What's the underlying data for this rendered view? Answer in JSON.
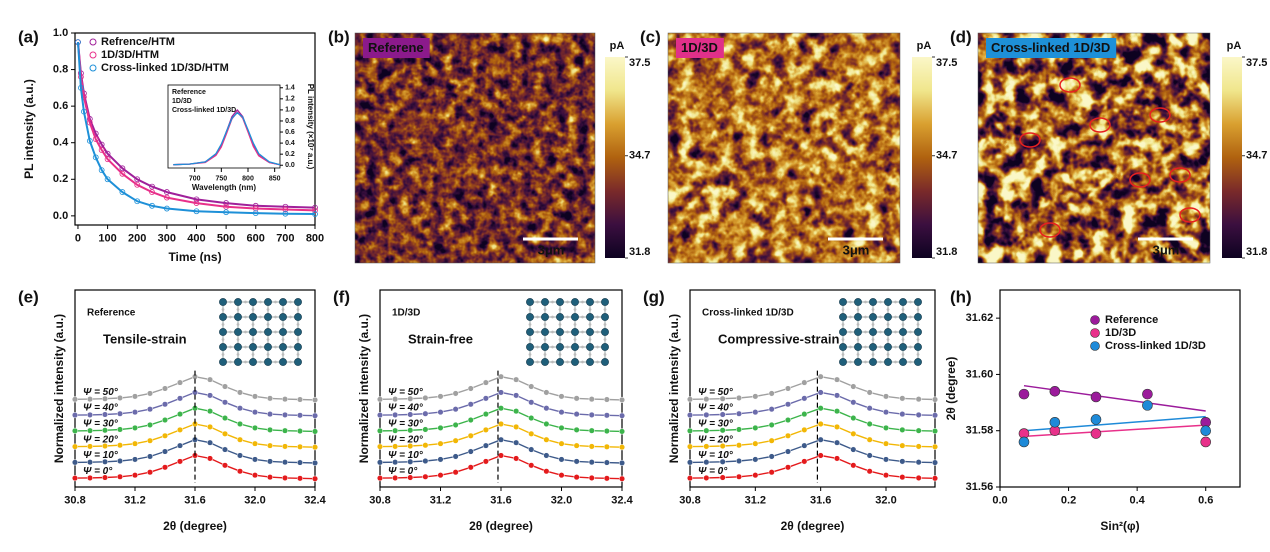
{
  "chart_data": [
    {
      "type": "line",
      "panel_label": "(a)",
      "x_label": "Time (ns)",
      "y_label": "PL intensity (a.u.)",
      "x": [
        0,
        10,
        20,
        40,
        60,
        80,
        100,
        150,
        200,
        250,
        300,
        400,
        500,
        600,
        700,
        800
      ],
      "xlim": [
        -10,
        800
      ],
      "xticks": [
        0,
        100,
        200,
        300,
        400,
        500,
        600,
        700,
        800
      ],
      "ylim": [
        -0.05,
        1.0
      ],
      "yticks": [
        {
          "value": 0,
          "label": "0.0"
        },
        0.2,
        0.4,
        0.6,
        0.8,
        {
          "value": 1,
          "label": "1.0"
        }
      ],
      "legend": "upper left",
      "series": [
        {
          "name": "Refrence/HTM",
          "color": "#a0209a",
          "values": [
            0.95,
            0.78,
            0.67,
            0.53,
            0.45,
            0.39,
            0.34,
            0.26,
            0.2,
            0.16,
            0.13,
            0.09,
            0.07,
            0.055,
            0.05,
            0.045
          ]
        },
        {
          "name": "1D/3D/HTM",
          "color": "#e8308a",
          "values": [
            0.95,
            0.76,
            0.65,
            0.51,
            0.42,
            0.36,
            0.31,
            0.23,
            0.17,
            0.13,
            0.1,
            0.07,
            0.05,
            0.04,
            0.035,
            0.03
          ]
        },
        {
          "name": "Cross-linked 1D/3D/HTM",
          "color": "#1e90d8",
          "values": [
            0.95,
            0.7,
            0.57,
            0.41,
            0.32,
            0.25,
            0.2,
            0.13,
            0.08,
            0.055,
            0.04,
            0.025,
            0.02,
            0.015,
            0.012,
            0.01
          ]
        }
      ]
    },
    {
      "type": "line",
      "x_label": "Wavelength (nm)",
      "y_label": "PL intensity (×10⁷ a.u.)",
      "yaxis": "right",
      "x": [
        660,
        690,
        720,
        740,
        750,
        760,
        770,
        780,
        790,
        800,
        810,
        820,
        840,
        860
      ],
      "xlim": [
        650,
        860
      ],
      "xticks": [
        700,
        750,
        800,
        850
      ],
      "ylim": [
        -0.05,
        1.45
      ],
      "yticks": [
        {
          "value": 0,
          "label": "0.0"
        },
        0.2,
        0.4,
        0.6,
        0.8,
        {
          "value": 1,
          "label": "1.0"
        },
        1.2,
        1.4
      ],
      "legend": "upper left",
      "series": [
        {
          "name": "Reference",
          "color": "#a0209a",
          "values": [
            0.01,
            0.02,
            0.06,
            0.2,
            0.36,
            0.62,
            0.88,
            1.0,
            0.88,
            0.62,
            0.36,
            0.18,
            0.05,
            0.01
          ]
        },
        {
          "name": "1D/3D",
          "color": "#e8308a",
          "values": [
            0.01,
            0.02,
            0.05,
            0.18,
            0.33,
            0.58,
            0.84,
            0.96,
            0.85,
            0.6,
            0.34,
            0.17,
            0.05,
            0.01
          ]
        },
        {
          "name": "Cross-linked 1D/3D",
          "color": "#1e90d8",
          "values": [
            0.01,
            0.02,
            0.06,
            0.21,
            0.38,
            0.62,
            0.85,
            0.95,
            0.87,
            0.64,
            0.4,
            0.21,
            0.06,
            0.01
          ]
        }
      ]
    },
    {
      "type": "image",
      "panel_label": "(b)",
      "label": "Referene",
      "label_color": "#8b1a8b",
      "scale_bar": "3μm",
      "colorbar_unit": "pA",
      "clim": [
        31.8,
        37.5
      ],
      "cticks": [
        37.5,
        34.7,
        31.8
      ],
      "colormap": [
        "#0d0221",
        "#3b0f3f",
        "#7a2a2a",
        "#b0620f",
        "#d9a030",
        "#f0e68c",
        "#fbf7c8"
      ]
    },
    {
      "type": "image",
      "panel_label": "(c)",
      "label": "1D/3D",
      "label_color": "#e0308a",
      "scale_bar": "3μm",
      "colorbar_unit": "pA",
      "clim": [
        31.8,
        37.5
      ],
      "cticks": [
        37.5,
        34.7,
        31.8
      ],
      "colormap": [
        "#0d0221",
        "#3b0f3f",
        "#7a2a2a",
        "#b0620f",
        "#d9a030",
        "#f0e68c",
        "#fbf7c8"
      ]
    },
    {
      "type": "image",
      "panel_label": "(d)",
      "label": "Cross-linked 1D/3D",
      "label_color": "#1e90d8",
      "scale_bar": "3μm",
      "colorbar_unit": "pA",
      "clim": [
        31.8,
        37.5
      ],
      "cticks": [
        37.5,
        34.7,
        31.8
      ],
      "colormap": [
        "#0d0221",
        "#3b0f3f",
        "#7a2a2a",
        "#b0620f",
        "#d9a030",
        "#f0e68c",
        "#fbf7c8"
      ]
    },
    {
      "type": "line",
      "panel_label": "(e)",
      "x_label": "2θ (degree)",
      "y_label": "Normalized intensity (a.u.)",
      "sample": "Reference",
      "sample_color": "#a0209a",
      "strain": "Tensile-strain",
      "strain_color": "#8b1a8b",
      "peak_line": 31.6,
      "x": [
        30.8,
        30.9,
        31.0,
        31.1,
        31.2,
        31.3,
        31.4,
        31.5,
        31.6,
        31.7,
        31.8,
        31.9,
        32.0,
        32.1,
        32.2,
        32.3,
        32.4
      ],
      "xlim": [
        30.8,
        32.4
      ],
      "xticks": [
        30.8,
        31.2,
        31.6,
        {
          "value": 32,
          "label": "32.0"
        },
        32.4
      ],
      "ylim": [
        0,
        10
      ],
      "series": [
        {
          "name": "Ψ = 0°",
          "color": "#e41a1c",
          "values": [
            0.45,
            0.46,
            0.48,
            0.52,
            0.6,
            0.75,
            1.0,
            1.3,
            1.6,
            1.45,
            1.1,
            0.8,
            0.6,
            0.5,
            0.46,
            0.44,
            0.42
          ]
        },
        {
          "name": "Ψ = 10°",
          "color": "#3d5a8a",
          "values": [
            1.25,
            1.26,
            1.28,
            1.32,
            1.4,
            1.55,
            1.8,
            2.1,
            2.4,
            2.25,
            1.9,
            1.6,
            1.4,
            1.3,
            1.26,
            1.24,
            1.22
          ]
        },
        {
          "name": "Ψ = 20°",
          "color": "#f2b705",
          "values": [
            2.05,
            2.06,
            2.08,
            2.12,
            2.2,
            2.35,
            2.6,
            2.9,
            3.2,
            3.05,
            2.7,
            2.4,
            2.2,
            2.1,
            2.06,
            2.04,
            2.02
          ]
        },
        {
          "name": "Ψ = 30°",
          "color": "#3cb44b",
          "values": [
            2.85,
            2.86,
            2.88,
            2.92,
            3.0,
            3.15,
            3.4,
            3.7,
            4.0,
            3.85,
            3.5,
            3.2,
            3.0,
            2.9,
            2.86,
            2.84,
            2.82
          ]
        },
        {
          "name": "Ψ = 40°",
          "color": "#6b6bab",
          "values": [
            3.65,
            3.66,
            3.68,
            3.72,
            3.8,
            3.95,
            4.2,
            4.5,
            4.8,
            4.65,
            4.3,
            4.0,
            3.8,
            3.7,
            3.66,
            3.64,
            3.62
          ]
        },
        {
          "name": "Ψ = 50°",
          "color": "#a0a0a0",
          "values": [
            4.45,
            4.46,
            4.48,
            4.52,
            4.6,
            4.75,
            5.0,
            5.3,
            5.6,
            5.45,
            5.1,
            4.8,
            4.6,
            4.5,
            4.46,
            4.44,
            4.42
          ]
        }
      ]
    },
    {
      "type": "line",
      "panel_label": "(f)",
      "x_label": "2θ (degree)",
      "y_label": "Normalized intensity (a.u.)",
      "sample": "1D/3D",
      "sample_color": "#e0308a",
      "strain": "Strain-free",
      "strain_color": "#e8308a",
      "peak_line": 31.58,
      "x": [
        30.8,
        30.9,
        31.0,
        31.1,
        31.2,
        31.3,
        31.4,
        31.5,
        31.6,
        31.7,
        31.8,
        31.9,
        32.0,
        32.1,
        32.2,
        32.3,
        32.4
      ],
      "xlim": [
        30.8,
        32.4
      ],
      "xticks": [
        30.8,
        31.2,
        31.6,
        {
          "value": 32,
          "label": "32.0"
        },
        32.4
      ],
      "ylim": [
        0,
        10
      ],
      "series": [
        {
          "name": "Ψ = 0°",
          "color": "#e41a1c",
          "values": [
            0.45,
            0.46,
            0.48,
            0.52,
            0.6,
            0.75,
            1.0,
            1.3,
            1.6,
            1.45,
            1.1,
            0.8,
            0.6,
            0.5,
            0.46,
            0.44,
            0.42
          ]
        },
        {
          "name": "Ψ = 10°",
          "color": "#3d5a8a",
          "values": [
            1.25,
            1.26,
            1.28,
            1.32,
            1.4,
            1.55,
            1.8,
            2.1,
            2.4,
            2.25,
            1.9,
            1.6,
            1.4,
            1.3,
            1.26,
            1.24,
            1.22
          ]
        },
        {
          "name": "Ψ = 20°",
          "color": "#f2b705",
          "values": [
            2.05,
            2.06,
            2.08,
            2.12,
            2.2,
            2.35,
            2.6,
            2.9,
            3.2,
            3.05,
            2.7,
            2.4,
            2.2,
            2.1,
            2.06,
            2.04,
            2.02
          ]
        },
        {
          "name": "Ψ = 30°",
          "color": "#3cb44b",
          "values": [
            2.85,
            2.86,
            2.88,
            2.92,
            3.0,
            3.15,
            3.4,
            3.7,
            4.0,
            3.85,
            3.5,
            3.2,
            3.0,
            2.9,
            2.86,
            2.84,
            2.82
          ]
        },
        {
          "name": "Ψ = 40°",
          "color": "#6b6bab",
          "values": [
            3.65,
            3.66,
            3.68,
            3.72,
            3.8,
            3.95,
            4.2,
            4.5,
            4.8,
            4.65,
            4.3,
            4.0,
            3.8,
            3.7,
            3.66,
            3.64,
            3.62
          ]
        },
        {
          "name": "Ψ = 50°",
          "color": "#a0a0a0",
          "values": [
            4.45,
            4.46,
            4.48,
            4.52,
            4.6,
            4.75,
            5.0,
            5.3,
            5.6,
            5.45,
            5.1,
            4.8,
            4.6,
            4.5,
            4.46,
            4.44,
            4.42
          ]
        }
      ]
    },
    {
      "type": "line",
      "panel_label": "(g)",
      "x_label": "2θ (degree)",
      "y_label": "Normalized intensity (a.u.)",
      "sample": "Cross-linked 1D/3D",
      "sample_color": "#1e90d8",
      "strain": "Compressive-strain",
      "strain_color": "#1e90d8",
      "peak_line": 31.58,
      "x": [
        30.8,
        30.9,
        31.0,
        31.1,
        31.2,
        31.3,
        31.4,
        31.5,
        31.6,
        31.7,
        31.8,
        31.9,
        32.0,
        32.1,
        32.2,
        32.3
      ],
      "xlim": [
        30.8,
        32.3
      ],
      "xticks": [
        30.8,
        31.2,
        31.6,
        {
          "value": 32,
          "label": "32.0"
        }
      ],
      "ylim": [
        0,
        10
      ],
      "series": [
        {
          "name": "Ψ = 0°",
          "color": "#e41a1c",
          "values": [
            0.45,
            0.46,
            0.48,
            0.52,
            0.6,
            0.75,
            1.0,
            1.3,
            1.6,
            1.45,
            1.1,
            0.8,
            0.6,
            0.5,
            0.46,
            0.44
          ]
        },
        {
          "name": "Ψ = 10°",
          "color": "#3d5a8a",
          "values": [
            1.25,
            1.26,
            1.28,
            1.32,
            1.4,
            1.55,
            1.8,
            2.1,
            2.4,
            2.25,
            1.9,
            1.6,
            1.4,
            1.3,
            1.26,
            1.24
          ]
        },
        {
          "name": "Ψ = 20°",
          "color": "#f2b705",
          "values": [
            2.05,
            2.06,
            2.08,
            2.12,
            2.2,
            2.35,
            2.6,
            2.9,
            3.2,
            3.05,
            2.7,
            2.4,
            2.2,
            2.1,
            2.06,
            2.04
          ]
        },
        {
          "name": "Ψ = 30°",
          "color": "#3cb44b",
          "values": [
            2.85,
            2.86,
            2.88,
            2.92,
            3.0,
            3.15,
            3.4,
            3.7,
            4.0,
            3.85,
            3.5,
            3.2,
            3.0,
            2.9,
            2.86,
            2.84
          ]
        },
        {
          "name": "Ψ = 40°",
          "color": "#6b6bab",
          "values": [
            3.65,
            3.66,
            3.68,
            3.72,
            3.8,
            3.95,
            4.2,
            4.5,
            4.8,
            4.65,
            4.3,
            4.0,
            3.8,
            3.7,
            3.66,
            3.64
          ]
        },
        {
          "name": "Ψ = 50°",
          "color": "#a0a0a0",
          "values": [
            4.45,
            4.46,
            4.48,
            4.52,
            4.6,
            4.75,
            5.0,
            5.3,
            5.6,
            5.45,
            5.1,
            4.8,
            4.6,
            4.5,
            4.46,
            4.44
          ]
        }
      ]
    },
    {
      "type": "scatter",
      "panel_label": "(h)",
      "x_label": "Sin²(φ)",
      "y_label": "2θ (degree)",
      "x": [
        0.07,
        0.16,
        0.28,
        0.43,
        0.6
      ],
      "xlim": [
        0,
        0.7
      ],
      "xticks": [
        {
          "value": 0,
          "label": "0.0"
        },
        0.2,
        0.4,
        0.6
      ],
      "ylim": [
        31.56,
        31.63
      ],
      "yticks": [
        31.56,
        31.58,
        {
          "value": 31.6,
          "label": "31.60"
        },
        31.62
      ],
      "legend": "upper center",
      "series": [
        {
          "name": "Reference",
          "color": "#9b1b9b",
          "values": [
            31.593,
            31.594,
            31.592,
            31.593,
            31.583
          ],
          "fit": [
            31.596,
            31.587
          ]
        },
        {
          "name": "1D/3D",
          "color": "#e8308a",
          "values": [
            31.579,
            31.58,
            31.579,
            null,
            31.576
          ],
          "fit": [
            31.578,
            31.582
          ]
        },
        {
          "name": "Cross-linked 1D/3D",
          "color": "#1e8ad8",
          "values": [
            31.576,
            31.583,
            31.584,
            31.589,
            31.58
          ],
          "fit": [
            31.58,
            31.585
          ]
        }
      ]
    }
  ]
}
